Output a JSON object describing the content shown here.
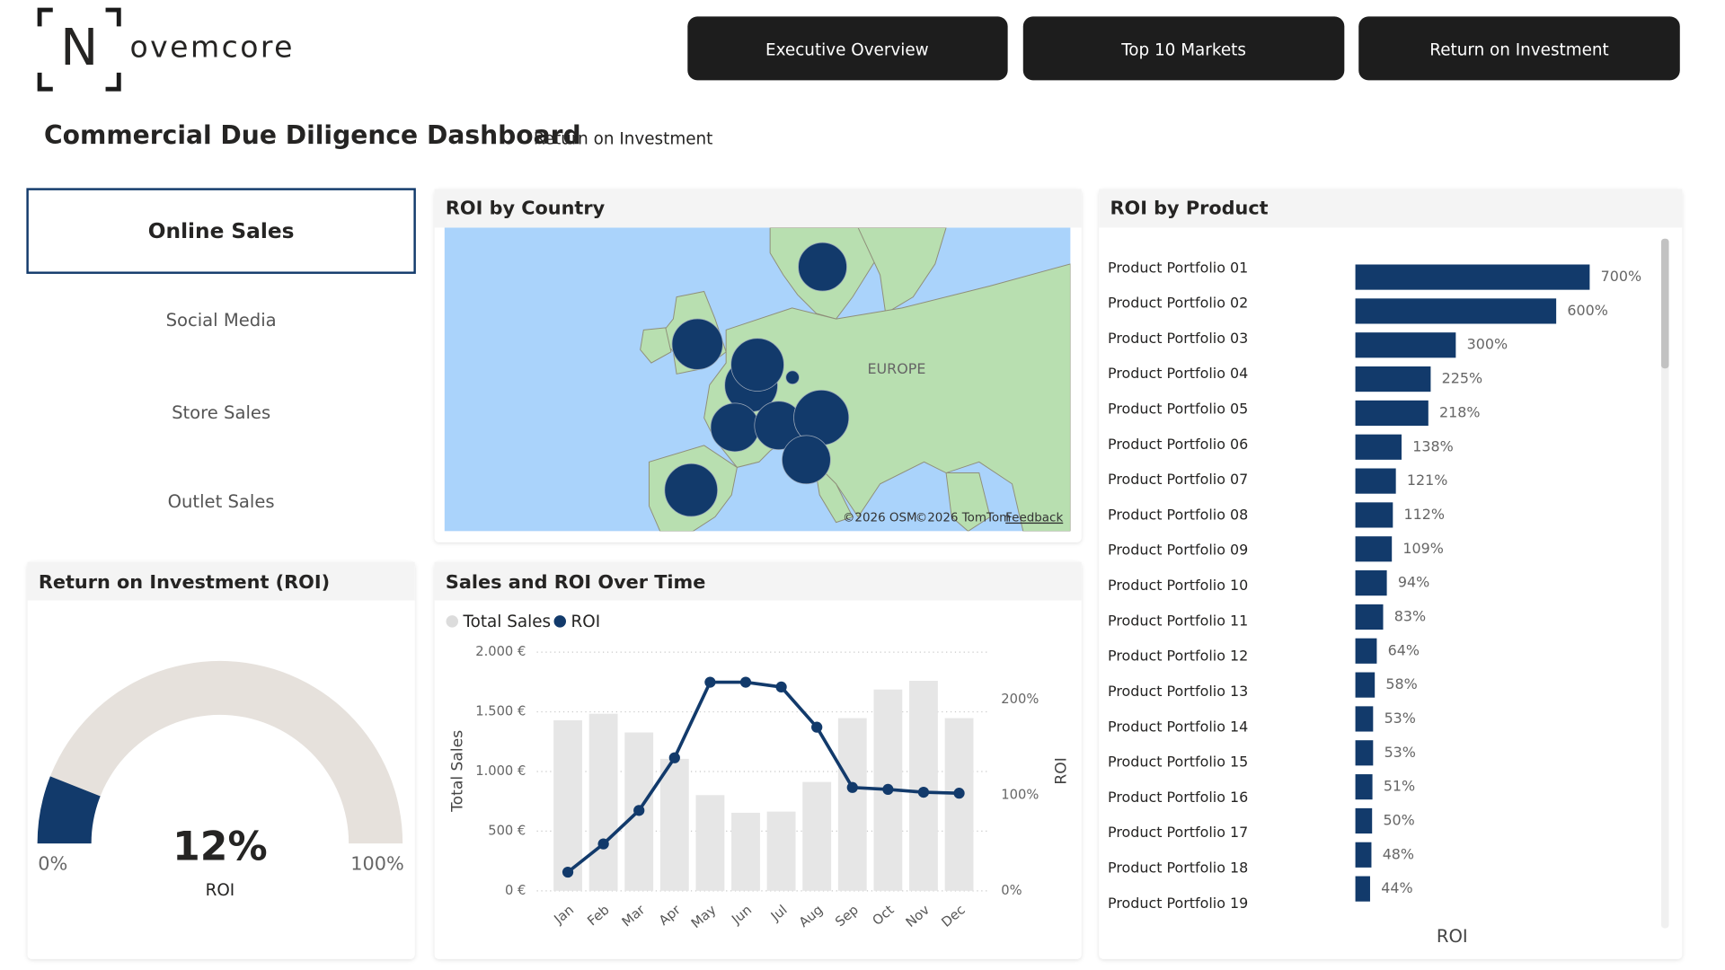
{
  "logo": {
    "letter": "N",
    "text": "ovemcore"
  },
  "nav": [
    "Executive Overview",
    "Top 10 Markets",
    "Return on Investment"
  ],
  "header": {
    "title": "Commercial Due Diligence Dashboard",
    "subtitle": "Return on Investment"
  },
  "slicer": {
    "items": [
      "Online Sales",
      "Social Media",
      "Store Sales",
      "Outlet Sales"
    ],
    "selected": 0
  },
  "chart_data": [
    {
      "type": "gauge",
      "title": "Return on Investment (ROI)",
      "value": 12,
      "value_label": "12%",
      "min": 0,
      "min_label": "0%",
      "max": 100,
      "max_label": "100%",
      "label": "ROI",
      "color": "#123a6b",
      "track_color": "#e6e1dc"
    },
    {
      "type": "map",
      "title": "ROI by Country",
      "region_label": "EUROPE",
      "credits": [
        "©2026 OSM",
        "©2026 TomTom",
        "Feedback"
      ],
      "lonlim": [
        -15,
        35
      ],
      "latlim": [
        35,
        66
      ],
      "color": "#123a6b",
      "bubbles": [
        {
          "lon": 15.2,
          "lat": 62.0,
          "size": 22
        },
        {
          "lon": 5.2,
          "lat": 54.1,
          "size": 23
        },
        {
          "lon": 9.5,
          "lat": 49.9,
          "size": 24
        },
        {
          "lon": 10.0,
          "lat": 52.0,
          "size": 24
        },
        {
          "lon": 12.8,
          "lat": 50.7,
          "size": 6
        },
        {
          "lon": 8.2,
          "lat": 45.6,
          "size": 22
        },
        {
          "lon": 11.7,
          "lat": 45.8,
          "size": 22
        },
        {
          "lon": 15.1,
          "lat": 46.6,
          "size": 25
        },
        {
          "lon": 13.9,
          "lat": 42.3,
          "size": 22
        },
        {
          "lon": 4.7,
          "lat": 39.2,
          "size": 24
        }
      ]
    },
    {
      "type": "combo",
      "title": "Sales and ROI Over Time",
      "categories": [
        "Jan",
        "Feb",
        "Mar",
        "Apr",
        "May",
        "Jun",
        "Jul",
        "Aug",
        "Sep",
        "Oct",
        "Nov",
        "Dec"
      ],
      "series": [
        {
          "name": "Total Sales",
          "color": "#e6e6e6",
          "values": [
            1429,
            1484,
            1327,
            1106,
            802,
            654,
            664,
            912,
            1447,
            1687,
            1760,
            1447
          ]
        },
        {
          "name": "ROI",
          "color": "#123a6b",
          "axis": "y2",
          "values": [
            19.5,
            49,
            84,
            139,
            218,
            218,
            213,
            171,
            108,
            106,
            103,
            102
          ]
        }
      ],
      "ylabel": "Total Sales",
      "y2label": "ROI",
      "ylim": [
        0,
        2000
      ],
      "yticks": [
        {
          "value": 0,
          "label": "0 €"
        },
        {
          "value": 500,
          "label": "500 €"
        },
        {
          "value": 1000,
          "label": "1.000 €"
        },
        {
          "value": 1500,
          "label": "1.500 €"
        },
        {
          "value": 2000,
          "label": "2.000 €"
        }
      ],
      "y2lim": [
        0,
        249.4
      ],
      "y2ticks": [
        {
          "value": 0,
          "label": "0%"
        },
        {
          "value": 100,
          "label": "100%"
        },
        {
          "value": 200,
          "label": "200%"
        }
      ],
      "grid": true
    },
    {
      "type": "hbar",
      "title": "ROI by Product",
      "categories": [
        "Product Portfolio 01",
        "Product Portfolio 02",
        "Product Portfolio 03",
        "Product Portfolio 04",
        "Product Portfolio 05",
        "Product Portfolio 06",
        "Product Portfolio 07",
        "Product Portfolio 08",
        "Product Portfolio 09",
        "Product Portfolio 10",
        "Product Portfolio 11",
        "Product Portfolio 12",
        "Product Portfolio 13",
        "Product Portfolio 14",
        "Product Portfolio 15",
        "Product Portfolio 16",
        "Product Portfolio 17",
        "Product Portfolio 18",
        "Product Portfolio 19"
      ],
      "values": [
        700,
        600,
        300,
        225,
        218,
        138,
        121,
        112,
        109,
        94,
        83,
        64,
        58,
        53,
        53,
        51,
        50,
        48,
        44
      ],
      "value_labels": [
        "700%",
        "600%",
        "300%",
        "225%",
        "218%",
        "138%",
        "121%",
        "112%",
        "109%",
        "94%",
        "83%",
        "64%",
        "58%",
        "53%",
        "53%",
        "51%",
        "50%",
        "48%",
        "44%"
      ],
      "xlim": [
        0,
        700
      ],
      "xlabel": "ROI",
      "color": "#123a6b"
    }
  ]
}
